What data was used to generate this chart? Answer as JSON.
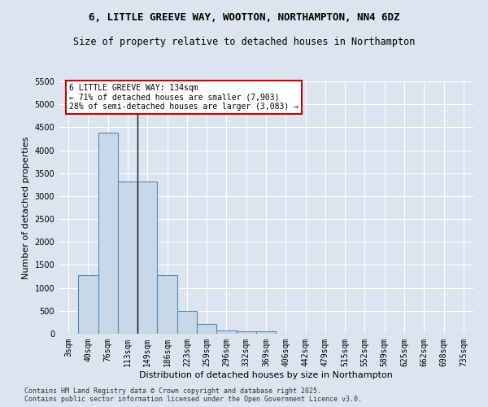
{
  "title": "6, LITTLE GREEVE WAY, WOOTTON, NORTHAMPTON, NN4 6DZ",
  "subtitle": "Size of property relative to detached houses in Northampton",
  "xlabel": "Distribution of detached houses by size in Northampton",
  "ylabel": "Number of detached properties",
  "footer_line1": "Contains HM Land Registry data © Crown copyright and database right 2025.",
  "footer_line2": "Contains public sector information licensed under the Open Government Licence v3.0.",
  "categories": [
    "3sqm",
    "40sqm",
    "76sqm",
    "113sqm",
    "149sqm",
    "186sqm",
    "223sqm",
    "259sqm",
    "296sqm",
    "332sqm",
    "369sqm",
    "406sqm",
    "442sqm",
    "479sqm",
    "515sqm",
    "552sqm",
    "589sqm",
    "625sqm",
    "662sqm",
    "698sqm",
    "735sqm"
  ],
  "bar_values": [
    0,
    1270,
    4380,
    3310,
    3310,
    1280,
    490,
    210,
    75,
    50,
    50,
    0,
    0,
    0,
    0,
    0,
    0,
    0,
    0,
    0,
    0
  ],
  "bar_color": "#c8d8e8",
  "bar_edge_color": "#5588bb",
  "property_line_x": 3.5,
  "annotation_title": "6 LITTLE GREEVE WAY: 134sqm",
  "annotation_line1": "← 71% of detached houses are smaller (7,903)",
  "annotation_line2": "28% of semi-detached houses are larger (3,083) →",
  "annotation_box_color": "#ffffff",
  "annotation_border_color": "#cc0000",
  "ylim": [
    0,
    5500
  ],
  "yticks": [
    0,
    500,
    1000,
    1500,
    2000,
    2500,
    3000,
    3500,
    4000,
    4500,
    5000,
    5500
  ],
  "background_color": "#dce4f0",
  "plot_background_color": "#dce4f0",
  "grid_color": "#ffffff",
  "title_fontsize": 9,
  "subtitle_fontsize": 8.5,
  "axis_label_fontsize": 8,
  "tick_fontsize": 7,
  "footer_fontsize": 6
}
